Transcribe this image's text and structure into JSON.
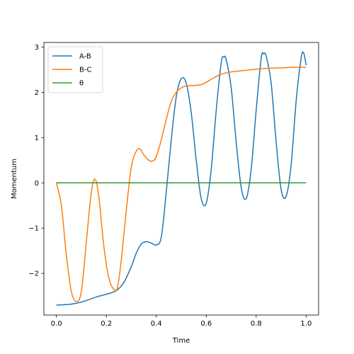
{
  "chart_data": {
    "type": "line",
    "title": "",
    "xlabel": "Time",
    "ylabel": "Momentum",
    "xlim": [
      -0.05,
      1.05
    ],
    "ylim": [
      -2.92,
      3.1
    ],
    "xticks": [
      0.0,
      0.2,
      0.4,
      0.6,
      0.8,
      1.0
    ],
    "xtick_labels": [
      "0.0",
      "0.2",
      "0.4",
      "0.6",
      "0.8",
      "1.0"
    ],
    "yticks": [
      -2,
      -1,
      0,
      1,
      2,
      3
    ],
    "ytick_labels": [
      "−2",
      "−1",
      "0",
      "1",
      "2",
      "3"
    ],
    "grid": false,
    "legend_position": "top-left",
    "series": [
      {
        "name": "A-B",
        "color": "#1f77b4",
        "x": [
          0.0,
          0.04,
          0.08,
          0.12,
          0.16,
          0.2,
          0.24,
          0.27,
          0.3,
          0.32,
          0.34,
          0.36,
          0.38,
          0.4,
          0.42,
          0.44,
          0.46,
          0.48,
          0.5,
          0.52,
          0.54,
          0.56,
          0.58,
          0.6,
          0.62,
          0.64,
          0.66,
          0.67,
          0.68,
          0.7,
          0.72,
          0.74,
          0.76,
          0.78,
          0.8,
          0.82,
          0.83,
          0.84,
          0.86,
          0.88,
          0.9,
          0.92,
          0.94,
          0.96,
          0.98,
          0.99,
          1.0
        ],
        "y": [
          -2.7,
          -2.69,
          -2.66,
          -2.6,
          -2.52,
          -2.46,
          -2.38,
          -2.2,
          -1.85,
          -1.55,
          -1.35,
          -1.3,
          -1.33,
          -1.37,
          -1.2,
          -0.2,
          0.95,
          1.9,
          2.3,
          2.2,
          1.55,
          0.5,
          -0.35,
          -0.45,
          0.3,
          1.6,
          2.65,
          2.78,
          2.72,
          2.1,
          0.9,
          -0.1,
          -0.35,
          0.3,
          1.6,
          2.75,
          2.85,
          2.8,
          2.2,
          0.9,
          -0.15,
          -0.3,
          0.4,
          1.8,
          2.75,
          2.87,
          2.6
        ]
      },
      {
        "name": "B-C",
        "color": "#ff7f0e",
        "x": [
          0.0,
          0.02,
          0.04,
          0.06,
          0.08,
          0.1,
          0.12,
          0.14,
          0.155,
          0.17,
          0.19,
          0.21,
          0.23,
          0.245,
          0.26,
          0.28,
          0.3,
          0.32,
          0.335,
          0.35,
          0.37,
          0.385,
          0.4,
          0.42,
          0.44,
          0.46,
          0.48,
          0.5,
          0.52,
          0.55,
          0.58,
          0.6,
          0.63,
          0.66,
          0.7,
          0.75,
          0.8,
          0.85,
          0.9,
          0.95,
          1.0
        ],
        "y": [
          0.0,
          -0.5,
          -1.6,
          -2.4,
          -2.62,
          -2.4,
          -1.3,
          -0.2,
          0.08,
          -0.3,
          -1.4,
          -2.1,
          -2.35,
          -2.3,
          -1.7,
          -0.6,
          0.35,
          0.7,
          0.75,
          0.62,
          0.5,
          0.48,
          0.58,
          0.95,
          1.4,
          1.8,
          2.0,
          2.1,
          2.14,
          2.15,
          2.17,
          2.22,
          2.32,
          2.4,
          2.45,
          2.48,
          2.51,
          2.53,
          2.54,
          2.55,
          2.55
        ]
      },
      {
        "name": "θ",
        "color": "#2ca02c",
        "x": [
          0.0,
          1.0
        ],
        "y": [
          0.0,
          0.0
        ]
      }
    ]
  }
}
